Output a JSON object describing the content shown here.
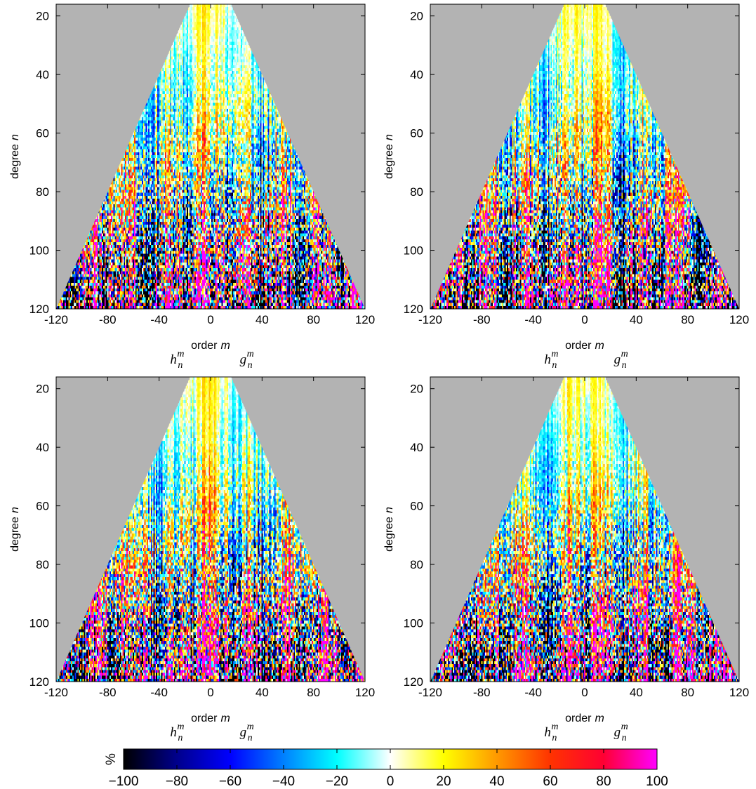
{
  "chart_data": [
    {
      "type": "heatmap",
      "x_axis": {
        "label_text": "order",
        "label_var": "m",
        "range": [
          -120,
          120
        ],
        "ticks": [
          "-120",
          "-80",
          "-40",
          "0",
          "40",
          "80",
          "120"
        ]
      },
      "y_axis": {
        "label_text": "degree",
        "label_var": "n",
        "range": [
          16,
          120
        ],
        "reversed": true,
        "ticks": [
          "20",
          "40",
          "60",
          "80",
          "100",
          "120"
        ]
      },
      "coef_labels": {
        "h": "h",
        "g": "g",
        "sub": "n",
        "sup": "m"
      },
      "domain": "triangular |m| <= n, grey outside",
      "background_color": "#b3b3b3",
      "seed": 11
    },
    {
      "type": "heatmap",
      "x_axis": {
        "label_text": "order",
        "label_var": "m",
        "range": [
          -120,
          120
        ],
        "ticks": [
          "-120",
          "-80",
          "-40",
          "0",
          "40",
          "80",
          "120"
        ]
      },
      "y_axis": {
        "label_text": "degree",
        "label_var": "n",
        "range": [
          16,
          120
        ],
        "reversed": true,
        "ticks": [
          "20",
          "40",
          "60",
          "80",
          "100",
          "120"
        ]
      },
      "coef_labels": {
        "h": "h",
        "g": "g",
        "sub": "n",
        "sup": "m"
      },
      "domain": "triangular |m| <= n, grey outside",
      "background_color": "#b3b3b3",
      "seed": 23
    },
    {
      "type": "heatmap",
      "x_axis": {
        "label_text": "order",
        "label_var": "m",
        "range": [
          -120,
          120
        ],
        "ticks": [
          "-120",
          "-80",
          "-40",
          "0",
          "40",
          "80",
          "120"
        ]
      },
      "y_axis": {
        "label_text": "degree",
        "label_var": "n",
        "range": [
          16,
          120
        ],
        "reversed": true,
        "ticks": [
          "20",
          "40",
          "60",
          "80",
          "100",
          "120"
        ]
      },
      "coef_labels": {
        "h": "h",
        "g": "g",
        "sub": "n",
        "sup": "m"
      },
      "domain": "triangular |m| <= n, grey outside",
      "background_color": "#b3b3b3",
      "seed": 37
    },
    {
      "type": "heatmap",
      "x_axis": {
        "label_text": "order",
        "label_var": "m",
        "range": [
          -120,
          120
        ],
        "ticks": [
          "-120",
          "-80",
          "-40",
          "0",
          "40",
          "80",
          "120"
        ]
      },
      "y_axis": {
        "label_text": "degree",
        "label_var": "n",
        "range": [
          16,
          120
        ],
        "reversed": true,
        "ticks": [
          "20",
          "40",
          "60",
          "80",
          "100",
          "120"
        ]
      },
      "coef_labels": {
        "h": "h",
        "g": "g",
        "sub": "n",
        "sup": "m"
      },
      "domain": "triangular |m| <= n, grey outside",
      "background_color": "#b3b3b3",
      "seed": 53
    }
  ],
  "colorbar": {
    "unit": "%",
    "range": [
      -100,
      100
    ],
    "ticks": [
      "-100",
      "-80",
      "-60",
      "-40",
      "-20",
      "0",
      "20",
      "40",
      "60",
      "80",
      "100"
    ],
    "colors": [
      {
        "v": -100,
        "c": "#000000"
      },
      {
        "v": -80,
        "c": "#00008c"
      },
      {
        "v": -60,
        "c": "#0000ff"
      },
      {
        "v": -40,
        "c": "#0080ff"
      },
      {
        "v": -20,
        "c": "#00ffff"
      },
      {
        "v": 0,
        "c": "#ffffff"
      },
      {
        "v": 20,
        "c": "#ffff00"
      },
      {
        "v": 40,
        "c": "#ff9900"
      },
      {
        "v": 60,
        "c": "#ff3300"
      },
      {
        "v": 80,
        "c": "#ff0033"
      },
      {
        "v": 100,
        "c": "#ff00ff"
      }
    ]
  }
}
